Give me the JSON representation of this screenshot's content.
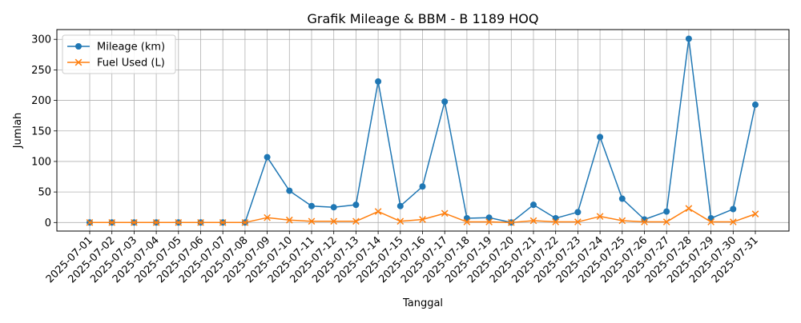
{
  "chart_data": {
    "type": "line",
    "title": "Grafik Mileage & BBM - B 1189 HOQ",
    "xlabel": "Tanggal",
    "ylabel": "Jumlah",
    "ylim": [
      -14,
      316
    ],
    "yticks": [
      0,
      50,
      100,
      150,
      200,
      250,
      300
    ],
    "grid": true,
    "legend_position": "top-left",
    "categories": [
      "2025-07-01",
      "2025-07-02",
      "2025-07-03",
      "2025-07-04",
      "2025-07-05",
      "2025-07-06",
      "2025-07-07",
      "2025-07-08",
      "2025-07-09",
      "2025-07-10",
      "2025-07-11",
      "2025-07-12",
      "2025-07-13",
      "2025-07-14",
      "2025-07-15",
      "2025-07-16",
      "2025-07-17",
      "2025-07-18",
      "2025-07-19",
      "2025-07-20",
      "2025-07-21",
      "2025-07-22",
      "2025-07-23",
      "2025-07-24",
      "2025-07-25",
      "2025-07-26",
      "2025-07-27",
      "2025-07-28",
      "2025-07-29",
      "2025-07-30",
      "2025-07-31"
    ],
    "series": [
      {
        "name": "Mileage (km)",
        "color": "#1f77b4",
        "marker": "circle",
        "values": [
          0,
          0,
          0,
          0,
          0,
          0,
          0,
          0,
          107,
          52,
          27,
          25,
          29,
          231,
          27,
          59,
          198,
          7,
          8,
          0,
          29,
          7,
          17,
          140,
          39,
          5,
          18,
          301,
          7,
          22,
          193
        ]
      },
      {
        "name": "Fuel Used (L)",
        "color": "#ff7f0e",
        "marker": "x",
        "values": [
          0,
          0,
          0,
          0,
          0,
          0,
          0,
          0,
          8,
          4,
          2,
          2,
          2,
          18,
          2,
          5,
          15,
          1,
          1,
          0,
          3,
          1,
          1,
          10,
          3,
          1,
          1,
          23,
          1,
          1,
          14
        ]
      }
    ]
  }
}
